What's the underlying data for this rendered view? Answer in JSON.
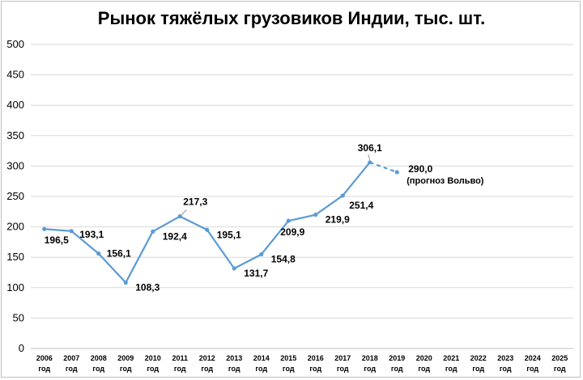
{
  "chart_data": {
    "type": "line",
    "title": "Рынок тяжёлых грузовиков Индии, тыс. шт.",
    "xlabel": "",
    "ylabel": "",
    "ylim": [
      0,
      500
    ],
    "yticks": [
      0,
      50,
      100,
      150,
      200,
      250,
      300,
      350,
      400,
      450,
      500
    ],
    "grid": true,
    "categories": [
      [
        "2006",
        "год"
      ],
      [
        "2007",
        "год"
      ],
      [
        "2008",
        "год"
      ],
      [
        "2009",
        "год"
      ],
      [
        "2010",
        "год"
      ],
      [
        "2011",
        "год"
      ],
      [
        "2012",
        "год"
      ],
      [
        "2013",
        "год"
      ],
      [
        "2014",
        "год"
      ],
      [
        "2015",
        "год"
      ],
      [
        "2016",
        "год"
      ],
      [
        "2017",
        "год"
      ],
      [
        "2018",
        "год"
      ],
      [
        "2019",
        "год"
      ],
      [
        "2020",
        "год"
      ],
      [
        "2021",
        "год"
      ],
      [
        "2022",
        "год"
      ],
      [
        "2023",
        "год"
      ],
      [
        "2024",
        "год"
      ],
      [
        "2025",
        "год"
      ]
    ],
    "series": [
      {
        "values": [
          196.5,
          193.1,
          156.1,
          108.3,
          192.4,
          217.3,
          195.1,
          131.7,
          154.8,
          209.9,
          219.9,
          251.4,
          306.1,
          290.0,
          null,
          null,
          null,
          null,
          null,
          null
        ],
        "labels": [
          "196,5",
          "193,1",
          "156,1",
          "108,3",
          "192,4",
          "217,3",
          "195,1",
          "131,7",
          "154,8",
          "209,9",
          "219,9",
          "251,4",
          "306,1",
          "290,0",
          "",
          "",
          "",
          "",
          "",
          ""
        ],
        "forecast_from_index": 12,
        "color": "#5b9bd5"
      }
    ],
    "forecast_note": "(прогноз Вольво)"
  }
}
